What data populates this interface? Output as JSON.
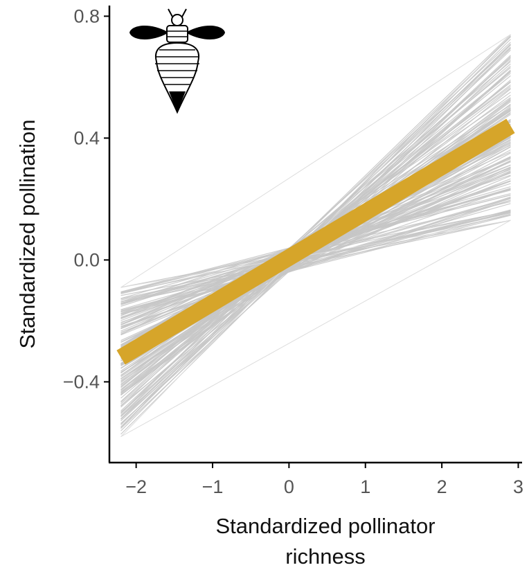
{
  "chart_data": {
    "type": "line",
    "title": "",
    "xlabel": "Standardized pollinator richness",
    "xlabel_lines": [
      "Standardized pollinator",
      "richness"
    ],
    "ylabel": "Standardized pollination",
    "xlim": [
      -2.35,
      3.05
    ],
    "ylim": [
      -0.665,
      0.835
    ],
    "x_ticks": [
      -2,
      -1,
      0,
      1,
      2,
      3
    ],
    "x_tick_labels": [
      "−2",
      "−1",
      "0",
      "1",
      "2",
      "3"
    ],
    "y_ticks": [
      -0.4,
      0.0,
      0.4,
      0.8
    ],
    "y_tick_labels": [
      "−0.4",
      "0.0",
      "0.4",
      "0.8"
    ],
    "x_range": [
      -2.2,
      2.9
    ],
    "series": [
      {
        "x": [
          -2.2,
          2.9
        ],
        "y": [
          -0.32,
          0.44
        ],
        "color": "#d6a52a",
        "role": "posterior-mean"
      }
    ],
    "posterior_draws": {
      "color": "#c6c6c6",
      "pivot": [
        0.0,
        0.0
      ],
      "y_at_x_min": [
        -0.58,
        -0.09
      ],
      "y_at_x_max": [
        0.13,
        0.74
      ]
    },
    "grid": false,
    "legend": "none"
  },
  "icon": "bee-icon",
  "colors": {
    "mean_line": "#d6a52a",
    "draws": "#c6c6c6",
    "axis": "#000000",
    "tick_label": "#555555"
  }
}
